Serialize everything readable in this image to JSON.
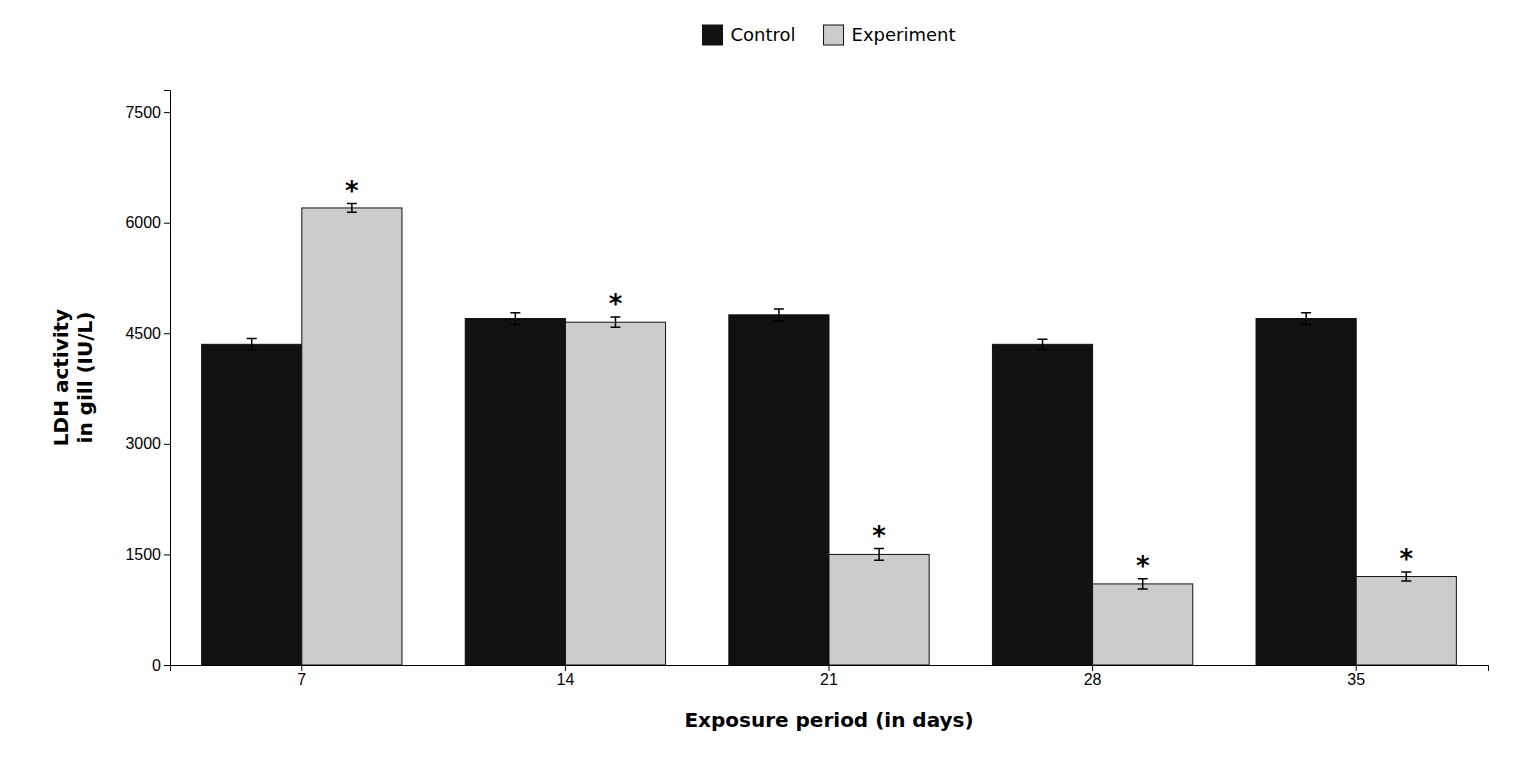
{
  "chart_data": {
    "type": "bar",
    "xlabel": "Exposure period (in days)",
    "ylabel": "LDH activity\nin gill (IU/L)",
    "categories": [
      "7",
      "14",
      "21",
      "28",
      "35"
    ],
    "series": [
      {
        "name": "Control",
        "color": "#111111",
        "values": [
          4350,
          4700,
          4750,
          4350,
          4700
        ],
        "errors": [
          80,
          80,
          80,
          70,
          80
        ]
      },
      {
        "name": "Experiment",
        "color": "#cccccc",
        "values": [
          6200,
          4650,
          1500,
          1100,
          1200
        ],
        "errors": [
          60,
          70,
          80,
          70,
          60
        ]
      }
    ],
    "annotations": [
      {
        "text": "*",
        "category": "7",
        "series": "Experiment"
      },
      {
        "text": "*",
        "category": "14",
        "series": "Experiment"
      },
      {
        "text": "*",
        "category": "21",
        "series": "Experiment"
      },
      {
        "text": "*",
        "category": "28",
        "series": "Experiment"
      },
      {
        "text": "*",
        "category": "35",
        "series": "Experiment"
      }
    ],
    "ylim": [
      0,
      7800
    ],
    "yticks": [
      0,
      1500,
      3000,
      4500,
      6000,
      7500
    ],
    "grid": false,
    "legend": "top"
  }
}
